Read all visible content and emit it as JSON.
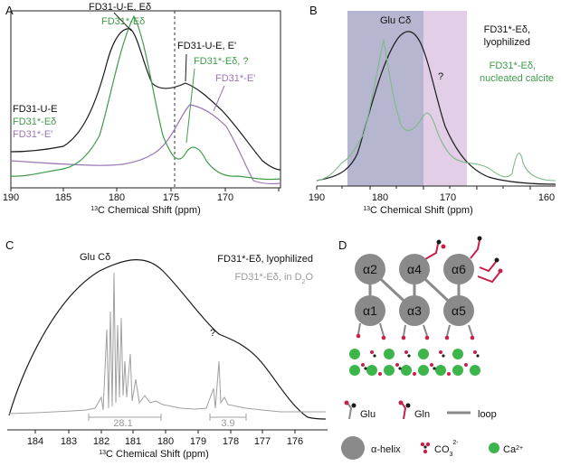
{
  "panels": {
    "A": {
      "letter": "A",
      "xaxis": {
        "label_pre": "13",
        "label_post": "C Chemical Shift (ppm)",
        "ticks": [
          "190",
          "185",
          "180",
          "175",
          "170"
        ]
      },
      "annotations": {
        "fd31ue_ed": "FD31-U-E, Eδ",
        "fd31s_ed": "FD31*-Eδ",
        "fd31ue_ep": "FD31-U-E, E'",
        "fd31s_ed_q": "FD31*-Eδ, ?",
        "fd31s_ep": "FD31*-E'"
      },
      "legend": [
        "FD31-U-E",
        "FD31*-Eδ",
        "FD31*-E'"
      ]
    },
    "B": {
      "letter": "B",
      "xaxis": {
        "label_pre": "13",
        "label_post": "C Chemical Shift (ppm)",
        "ticks": [
          "190",
          "180",
          "170",
          "160"
        ]
      },
      "glu": "Glu Cδ",
      "question": "?",
      "legend_black_1": "FD31*-Eδ,",
      "legend_black_2": "lyophilized",
      "legend_green_1": "FD31*-Eδ,",
      "legend_green_2": "nucleated calcite"
    },
    "C": {
      "letter": "C",
      "xaxis": {
        "label_pre": "13",
        "label_post": "C Chemical Shift (ppm)",
        "ticks": [
          "184",
          "183",
          "182",
          "181",
          "180",
          "179",
          "178",
          "177",
          "176"
        ]
      },
      "glu": "Glu Cδ",
      "question": "?",
      "legend_black": "FD31*-Eδ, lyophilized",
      "legend_gray_pre": "FD31*-Eδ, in D",
      "legend_gray_sub": "2",
      "legend_gray_post": "O",
      "width1": "28.1",
      "width2": "3.9"
    },
    "D": {
      "letter": "D",
      "helices": [
        "α2",
        "α4",
        "α6",
        "α1",
        "α3",
        "α5"
      ],
      "legend": {
        "glu": "Glu",
        "gln": "Gln",
        "loop": "loop",
        "helix": "α-helix",
        "co3_pre": "CO",
        "co3_sub": "3",
        "co3_sup": "2-",
        "ca_pre": "Ca",
        "ca_sup": "2+"
      }
    }
  },
  "colors": {
    "black": "#1a1a1a",
    "green": "#3f9b4a",
    "purple": "#9b76b8",
    "gray": "#a0a0a0",
    "helix": "#8a8a8a",
    "red": "#c8204a",
    "calcium": "#3cb54a",
    "band_blue": "#a9a9c8",
    "band_pink": "#ddc6e2"
  }
}
